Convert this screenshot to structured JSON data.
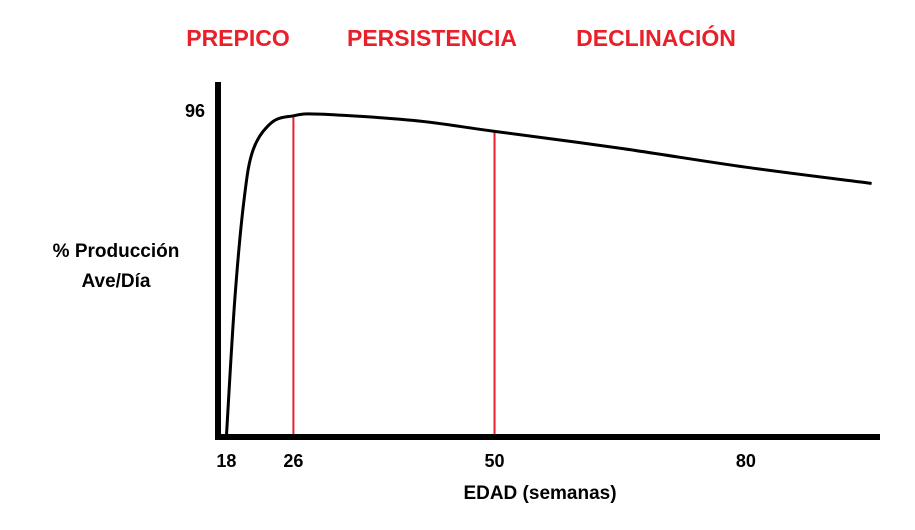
{
  "chart_data": {
    "type": "line",
    "phases": [
      "PREPICO",
      "PERSISTENCIA",
      "DECLINACIÓN"
    ],
    "phase_color": "#e8202a",
    "ylabel": [
      "% Producción",
      "Ave/Día"
    ],
    "xlabel": "EDAD (semanas)",
    "x": [
      18,
      19,
      20.1,
      21.2,
      23.4,
      26,
      29.1,
      40.4,
      50,
      65,
      80,
      95
    ],
    "series": [
      {
        "color": "#000000",
        "values": [
          0,
          40.5,
          70,
          85,
          93,
          95,
          95.5,
          93.6,
          90.4,
          85.4,
          79.8,
          75
        ]
      }
    ],
    "vlines": [
      26,
      50
    ],
    "vline_color": "#e8202a",
    "xlim": [
      17,
      96
    ],
    "xticks": [
      18,
      26,
      50,
      80
    ],
    "ylim": [
      0,
      105
    ],
    "yticks": [
      96
    ],
    "grid": false
  }
}
